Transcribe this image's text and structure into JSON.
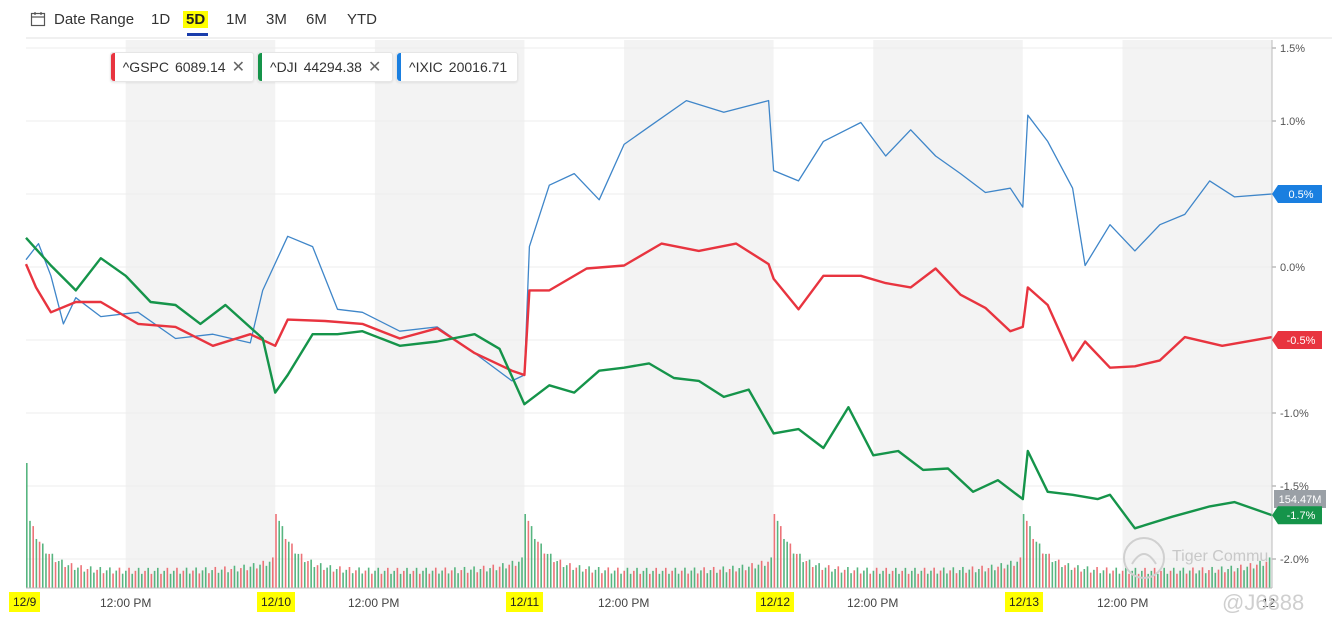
{
  "toolbar": {
    "date_range_label": "Date Range",
    "ranges": [
      "1D",
      "5D",
      "1M",
      "3M",
      "6M",
      "YTD"
    ],
    "active_range": "5D"
  },
  "legend": [
    {
      "symbol": "^GSPC",
      "value": "6089.14",
      "color": "#e8343f",
      "closable": true
    },
    {
      "symbol": "^DJI",
      "value": "44294.38",
      "color": "#15944a",
      "closable": true
    },
    {
      "symbol": "^IXIC",
      "value": "20016.71",
      "color": "#1a7fe0",
      "closable": false
    }
  ],
  "colors": {
    "gspc": "#e8343f",
    "dji": "#15944a",
    "ixic": "#3f86c9",
    "band": "#f3f3f3",
    "volume_up": "#3aa86a",
    "volume_down": "#ea5a60"
  },
  "x_labels": {
    "dates": [
      "12/9",
      "12/10",
      "12/11",
      "12/12",
      "12/13"
    ],
    "times": [
      "12:00 PM",
      "12:00 PM",
      "12:00 PM",
      "12:00 PM",
      "12:00 PM"
    ],
    "right_edge": "12"
  },
  "badges": {
    "ixic": "0.5%",
    "gspc": "-0.5%",
    "volume": "154.47M",
    "dji": "-1.7%"
  },
  "watermark": {
    "brand": "Tiger Commu",
    "user": "@J6888"
  },
  "chart_data": {
    "type": "line",
    "title": "",
    "xlabel": "",
    "ylabel": "",
    "y_unit": "%",
    "y_ticks": [
      "1.5%",
      "1.0%",
      "0.5%",
      "0.0%",
      "-0.5%",
      "-1.0%",
      "-1.5%",
      "-2.0%"
    ],
    "ylim": [
      -2.0,
      1.5
    ],
    "x": [
      "12/9 09:30",
      "12/9 12:00",
      "12/9 16:00",
      "12/10 12:00",
      "12/10 16:00",
      "12/11 12:00",
      "12/11 16:00",
      "12/12 12:00",
      "12/12 16:00",
      "12/13 12:00",
      "12/13 16:00"
    ],
    "series": [
      {
        "name": "^GSPC",
        "last": -0.5,
        "points": [
          [
            0,
            0.02
          ],
          [
            0.04,
            -0.1
          ],
          [
            0.1,
            -0.35
          ],
          [
            0.2,
            -0.2
          ],
          [
            0.3,
            -0.28
          ],
          [
            0.45,
            -0.35
          ],
          [
            0.6,
            -0.45
          ],
          [
            0.75,
            -0.5
          ],
          [
            0.9,
            -0.5
          ],
          [
            1.0,
            -0.5
          ],
          [
            1.05,
            -0.4
          ],
          [
            1.2,
            -0.33
          ],
          [
            1.35,
            -0.43
          ],
          [
            1.5,
            -0.45
          ],
          [
            1.65,
            -0.46
          ],
          [
            1.8,
            -0.55
          ],
          [
            1.95,
            -0.75
          ],
          [
            2.0,
            -0.7
          ],
          [
            2.02,
            -0.2
          ],
          [
            2.1,
            -0.12
          ],
          [
            2.25,
            -0.05
          ],
          [
            2.4,
            0.05
          ],
          [
            2.55,
            0.12
          ],
          [
            2.7,
            0.15
          ],
          [
            2.85,
            0.12
          ],
          [
            2.98,
            0.06
          ],
          [
            3.0,
            -0.12
          ],
          [
            3.1,
            -0.25
          ],
          [
            3.2,
            -0.1
          ],
          [
            3.35,
            -0.02
          ],
          [
            3.45,
            -0.15
          ],
          [
            3.55,
            -0.1
          ],
          [
            3.65,
            -0.05
          ],
          [
            3.75,
            -0.15
          ],
          [
            3.85,
            -0.32
          ],
          [
            3.95,
            -0.4
          ],
          [
            4.0,
            -0.45
          ],
          [
            4.02,
            -0.1
          ],
          [
            4.1,
            -0.3
          ],
          [
            4.2,
            -0.6
          ],
          [
            4.25,
            -0.55
          ],
          [
            4.35,
            -0.65
          ],
          [
            4.45,
            -0.72
          ],
          [
            4.55,
            -0.6
          ],
          [
            4.65,
            -0.52
          ],
          [
            4.8,
            -0.5
          ],
          [
            5.0,
            -0.48
          ]
        ]
      },
      {
        "name": "^DJI",
        "last": -1.7,
        "points": [
          [
            0,
            0.2
          ],
          [
            0.1,
            0.05
          ],
          [
            0.2,
            -0.2
          ],
          [
            0.3,
            0.1
          ],
          [
            0.4,
            -0.1
          ],
          [
            0.5,
            -0.2
          ],
          [
            0.6,
            -0.3
          ],
          [
            0.7,
            -0.35
          ],
          [
            0.8,
            -0.3
          ],
          [
            0.95,
            -0.45
          ],
          [
            1.0,
            -0.9
          ],
          [
            1.05,
            -0.7
          ],
          [
            1.15,
            -0.5
          ],
          [
            1.25,
            -0.42
          ],
          [
            1.35,
            -0.48
          ],
          [
            1.5,
            -0.5
          ],
          [
            1.65,
            -0.55
          ],
          [
            1.8,
            -0.42
          ],
          [
            1.9,
            -0.6
          ],
          [
            2.0,
            -0.9
          ],
          [
            2.1,
            -0.85
          ],
          [
            2.2,
            -0.82
          ],
          [
            2.3,
            -0.75
          ],
          [
            2.4,
            -0.65
          ],
          [
            2.5,
            -0.7
          ],
          [
            2.6,
            -0.72
          ],
          [
            2.7,
            -0.82
          ],
          [
            2.8,
            -0.85
          ],
          [
            2.9,
            -0.88
          ],
          [
            3.0,
            -1.1
          ],
          [
            3.1,
            -1.15
          ],
          [
            3.2,
            -1.2
          ],
          [
            3.3,
            -1.0
          ],
          [
            3.4,
            -1.25
          ],
          [
            3.5,
            -1.3
          ],
          [
            3.6,
            -1.35
          ],
          [
            3.7,
            -1.42
          ],
          [
            3.8,
            -1.5
          ],
          [
            3.9,
            -1.5
          ],
          [
            4.0,
            -1.55
          ],
          [
            4.02,
            -1.3
          ],
          [
            4.1,
            -1.5
          ],
          [
            4.2,
            -1.6
          ],
          [
            4.3,
            -1.55
          ],
          [
            4.35,
            -1.6
          ],
          [
            4.45,
            -1.75
          ],
          [
            4.6,
            -1.75
          ],
          [
            4.75,
            -1.6
          ],
          [
            4.85,
            -1.65
          ],
          [
            5.0,
            -1.7
          ]
        ]
      },
      {
        "name": "^IXIC",
        "last": 0.5,
        "points": [
          [
            0,
            0.05
          ],
          [
            0.05,
            0.2
          ],
          [
            0.1,
            -0.1
          ],
          [
            0.15,
            -0.35
          ],
          [
            0.2,
            -0.25
          ],
          [
            0.3,
            -0.3
          ],
          [
            0.45,
            -0.35
          ],
          [
            0.6,
            -0.45
          ],
          [
            0.75,
            -0.5
          ],
          [
            0.9,
            -0.48
          ],
          [
            0.95,
            -0.2
          ],
          [
            1.05,
            0.25
          ],
          [
            1.15,
            0.1
          ],
          [
            1.25,
            -0.25
          ],
          [
            1.35,
            -0.35
          ],
          [
            1.5,
            -0.4
          ],
          [
            1.65,
            -0.45
          ],
          [
            1.8,
            -0.55
          ],
          [
            1.95,
            -0.82
          ],
          [
            2.0,
            -0.7
          ],
          [
            2.02,
            0.1
          ],
          [
            2.1,
            0.6
          ],
          [
            2.2,
            0.6
          ],
          [
            2.3,
            0.5
          ],
          [
            2.4,
            0.8
          ],
          [
            2.5,
            1.0
          ],
          [
            2.65,
            1.1
          ],
          [
            2.8,
            1.1
          ],
          [
            2.98,
            1.1
          ],
          [
            3.0,
            0.7
          ],
          [
            3.1,
            0.55
          ],
          [
            3.2,
            0.9
          ],
          [
            3.35,
            0.95
          ],
          [
            3.45,
            0.8
          ],
          [
            3.55,
            0.9
          ],
          [
            3.65,
            0.8
          ],
          [
            3.75,
            0.6
          ],
          [
            3.85,
            0.55
          ],
          [
            3.95,
            0.5
          ],
          [
            4.0,
            0.45
          ],
          [
            4.02,
            1.0
          ],
          [
            4.1,
            0.9
          ],
          [
            4.2,
            0.5
          ],
          [
            4.25,
            0.05
          ],
          [
            4.35,
            0.25
          ],
          [
            4.45,
            0.15
          ],
          [
            4.55,
            0.25
          ],
          [
            4.65,
            0.4
          ],
          [
            4.75,
            0.55
          ],
          [
            4.85,
            0.52
          ],
          [
            5.0,
            0.5
          ]
        ]
      }
    ],
    "volume": {
      "last_label": "154.47M"
    },
    "grid": true,
    "legend_position": "top-left",
    "shaded_sessions": [
      [
        0.4,
        1.0
      ],
      [
        1.4,
        2.0
      ],
      [
        2.4,
        3.0
      ],
      [
        3.4,
        4.0
      ],
      [
        4.4,
        5.0
      ]
    ]
  }
}
